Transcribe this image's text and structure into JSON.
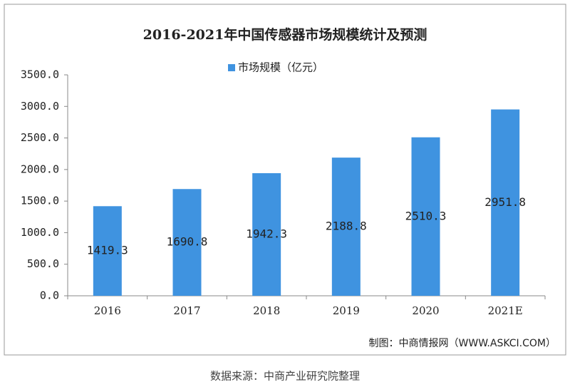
{
  "chart_data": {
    "type": "bar",
    "title": "2016-2021年中国传感器市场规模统计及预测",
    "categories": [
      "2016",
      "2017",
      "2018",
      "2019",
      "2020",
      "2021E"
    ],
    "series": [
      {
        "name": "市场规模（亿元）",
        "color": "#3f93e0",
        "values": [
          1419.3,
          1690.8,
          1942.3,
          2188.8,
          2510.3,
          2951.8
        ]
      }
    ],
    "ylim": [
      0,
      3500
    ],
    "yticks": [
      {
        "value": 0,
        "label": "0.0"
      },
      {
        "value": 500,
        "label": "500.0"
      },
      {
        "value": 1000,
        "label": "1000.0"
      },
      {
        "value": 1500,
        "label": "1500.0"
      },
      {
        "value": 2000,
        "label": "2000.0"
      },
      {
        "value": 2500,
        "label": "2500.0"
      },
      {
        "value": 3000,
        "label": "3000.0"
      },
      {
        "value": 3500,
        "label": "3500.0"
      }
    ],
    "grid": false,
    "legend": "top",
    "source": "制图：中商情报网（WWW.ASKCI.COM）",
    "caption": "数据来源：中商产业研究院整理"
  }
}
